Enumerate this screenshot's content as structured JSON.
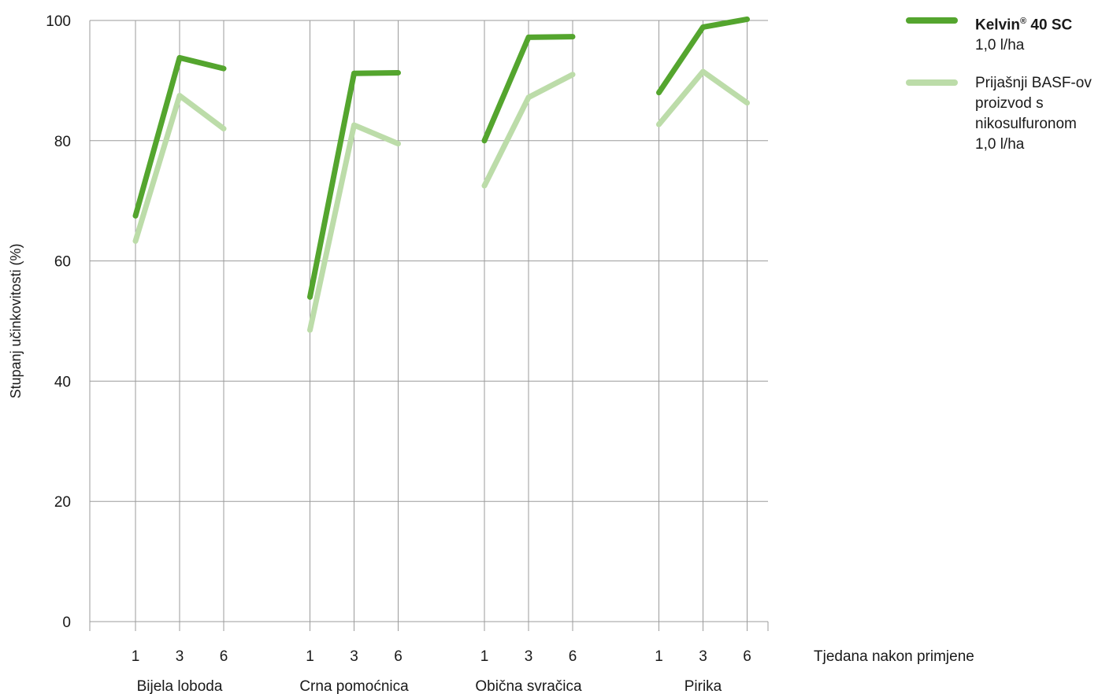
{
  "chart_data": {
    "type": "line",
    "ylabel": "Stupanj učinkovitosti (%)",
    "xlabel": "Tjedana nakon primjene",
    "ylim": [
      0,
      100
    ],
    "yticks": [
      0,
      20,
      40,
      60,
      80,
      100
    ],
    "grid": true,
    "legend_position": "top-right",
    "groups": [
      {
        "name": "Bijela loboda",
        "x": [
          "1",
          "3",
          "6"
        ]
      },
      {
        "name": "Crna pomoćnica",
        "x": [
          "1",
          "3",
          "6"
        ]
      },
      {
        "name": "Obična svračica",
        "x": [
          "1",
          "3",
          "6"
        ]
      },
      {
        "name": "Pirika",
        "x": [
          "1",
          "3",
          "6"
        ]
      }
    ],
    "series": [
      {
        "name": "Kelvin",
        "name_sup": "®",
        "name_rest": " 40 SC",
        "dose": "1,0 l/ha",
        "color": "#54a52e",
        "values": [
          [
            67.5,
            93.8,
            92
          ],
          [
            54,
            91.2,
            91.3
          ],
          [
            80,
            97.2,
            97.3
          ],
          [
            88,
            98.9,
            100.2
          ]
        ]
      },
      {
        "name": "Prijašnji BASF-ov proizvod s nikosulfuronom",
        "dose": "1,0 l/ha",
        "color": "#bcdca9",
        "values": [
          [
            63.3,
            87.5,
            82
          ],
          [
            48.5,
            82.6,
            79.5
          ],
          [
            72.5,
            87.2,
            91
          ],
          [
            82.7,
            91.5,
            86.3
          ]
        ]
      }
    ]
  },
  "legend": {
    "item1_name": "Kelvin",
    "item1_sup": "®",
    "item1_rest": " 40 SC",
    "item1_dose": "1,0 l/ha",
    "item2_name": "Prijašnji BASF-ov proizvod s nikosulfuronom",
    "item2_dose": "1,0 l/ha"
  }
}
